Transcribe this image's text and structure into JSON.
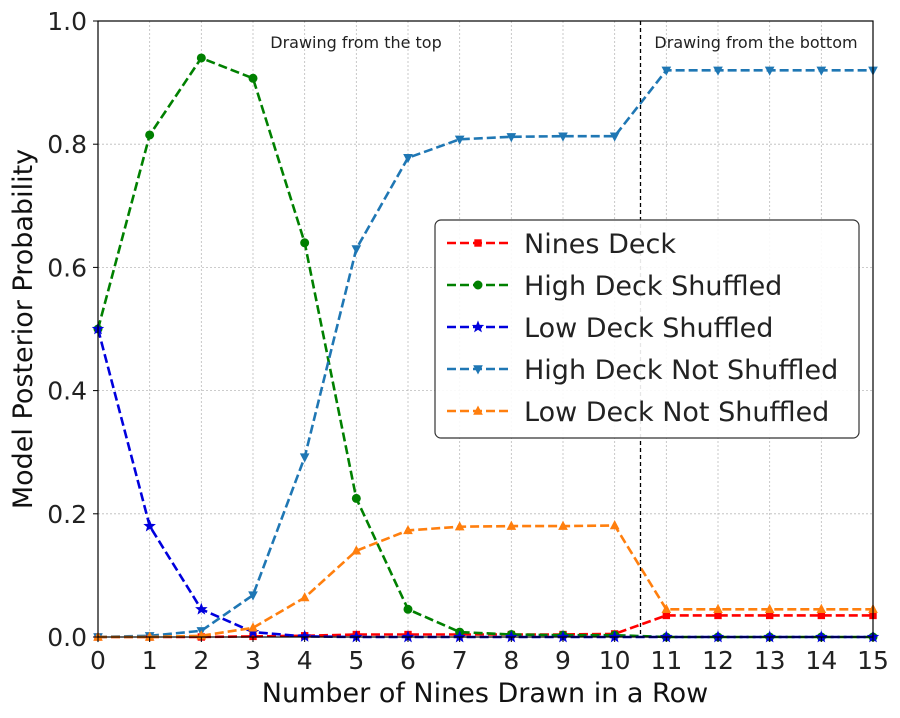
{
  "chart_data": {
    "type": "line",
    "xlabel": "Number of Nines Drawn in a Row",
    "ylabel": "Model Posterior Probability",
    "xlim": [
      0,
      15
    ],
    "ylim": [
      0,
      1
    ],
    "xticks": [
      "0",
      "1",
      "2",
      "3",
      "4",
      "5",
      "6",
      "7",
      "8",
      "9",
      "10",
      "11",
      "12",
      "13",
      "14",
      "15"
    ],
    "yticks": [
      "0.0",
      "0.2",
      "0.4",
      "0.6",
      "0.8",
      "1.0"
    ],
    "grid": true,
    "legend_position": "center-right",
    "x": [
      0,
      1,
      2,
      3,
      4,
      5,
      6,
      7,
      8,
      9,
      10,
      11,
      12,
      13,
      14,
      15
    ],
    "series": [
      {
        "name": "Nines Deck",
        "color": "#ff0000",
        "marker": "square",
        "values": [
          0,
          0,
          0,
          0.001,
          0.002,
          0.004,
          0.004,
          0.004,
          0.004,
          0.004,
          0.005,
          0.035,
          0.035,
          0.035,
          0.035,
          0.035
        ]
      },
      {
        "name": "High Deck Shuffled",
        "color": "#008000",
        "marker": "circle",
        "values": [
          0.5,
          0.815,
          0.94,
          0.907,
          0.64,
          0.225,
          0.045,
          0.008,
          0.004,
          0.003,
          0.003,
          0,
          0,
          0,
          0,
          0
        ]
      },
      {
        "name": "Low Deck Shuffled",
        "color": "#0000dd",
        "marker": "star",
        "values": [
          0.5,
          0.18,
          0.045,
          0.008,
          0.001,
          0,
          0,
          0,
          0,
          0,
          0,
          0,
          0,
          0,
          0,
          0
        ]
      },
      {
        "name": "High Deck Not Shuffled",
        "color": "#1f77b4",
        "marker": "triangle-down",
        "values": [
          0,
          0.002,
          0.01,
          0.068,
          0.292,
          0.63,
          0.778,
          0.808,
          0.812,
          0.813,
          0.813,
          0.92,
          0.92,
          0.92,
          0.92,
          0.92
        ]
      },
      {
        "name": "Low Deck Not Shuffled",
        "color": "#ff7f0e",
        "marker": "triangle-up",
        "values": [
          0,
          0,
          0.002,
          0.015,
          0.064,
          0.14,
          0.173,
          0.179,
          0.18,
          0.18,
          0.181,
          0.045,
          0.045,
          0.045,
          0.045,
          0.045
        ]
      }
    ],
    "vline": {
      "x": 10.5,
      "style": "dashed",
      "color": "#000000"
    },
    "annotations": {
      "top_phase": "Drawing from the top",
      "bottom_phase": "Drawing from the bottom"
    }
  }
}
